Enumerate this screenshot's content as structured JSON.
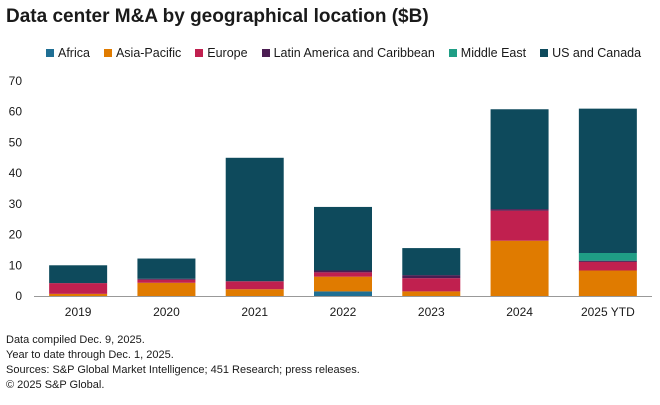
{
  "title": "Data center M&A by geographical location ($B)",
  "colors": {
    "Africa": "#1f6f94",
    "Asia-Pacific": "#e07b00",
    "Europe": "#c0204f",
    "Latin America and Caribbean": "#4b1d52",
    "Middle East": "#1f9e85",
    "US and Canada": "#0e4a5c",
    "axis": "#999999",
    "text": "#1a1a1a"
  },
  "chart_data": {
    "type": "bar",
    "stacked": true,
    "categories": [
      "2019",
      "2020",
      "2021",
      "2022",
      "2023",
      "2024",
      "2025 YTD"
    ],
    "series": [
      {
        "name": "Africa",
        "values": [
          0,
          0,
          0,
          1.5,
          0,
          0,
          0
        ]
      },
      {
        "name": "Asia-Pacific",
        "values": [
          0.7,
          4.3,
          2.2,
          4.8,
          1.5,
          18.0,
          8.3
        ]
      },
      {
        "name": "Europe",
        "values": [
          3.5,
          1.0,
          2.6,
          1.4,
          4.3,
          9.8,
          2.8
        ]
      },
      {
        "name": "Latin America and Caribbean",
        "values": [
          0,
          0.3,
          0,
          0.6,
          1.0,
          0.5,
          0.4
        ]
      },
      {
        "name": "Middle East",
        "values": [
          0,
          0,
          0,
          0,
          0,
          0,
          2.5
        ]
      },
      {
        "name": "US and Canada",
        "values": [
          5.8,
          6.6,
          40.2,
          20.7,
          8.8,
          32.5,
          47.0
        ]
      }
    ],
    "ylim": [
      0,
      70
    ],
    "yticks": [
      0,
      10,
      20,
      30,
      40,
      50,
      60,
      70
    ],
    "legend_position": "top",
    "grid": false
  },
  "notes": [
    "Data compiled Dec. 9, 2025.",
    "Year to date through Dec. 1, 2025.",
    "Sources: S&P Global Market Intelligence; 451 Research; press releases.",
    "© 2025 S&P Global."
  ]
}
